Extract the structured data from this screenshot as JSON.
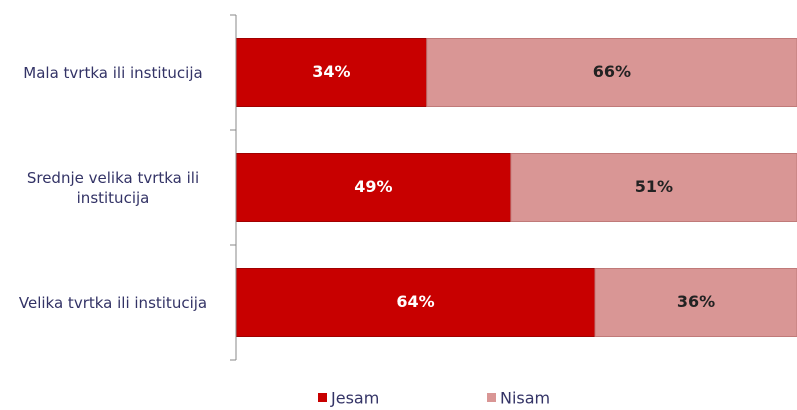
{
  "chart_data": {
    "type": "stacked-bar-horizontal",
    "categories": [
      "Mala tvrtka ili institucija",
      "Srednje velika tvrtka ili institucija",
      "Velika tvrtka ili institucija"
    ],
    "series": [
      {
        "name": "Jesam",
        "color": "#c80000",
        "values": [
          34,
          49,
          64
        ],
        "value_labels": [
          "34%",
          "49%",
          "64%"
        ]
      },
      {
        "name": "Nisam",
        "color": "#d99695",
        "values": [
          66,
          51,
          36
        ],
        "value_labels": [
          "66%",
          "51%",
          "36%"
        ]
      }
    ],
    "xlim": [
      0,
      100
    ],
    "legend": "bottom"
  }
}
